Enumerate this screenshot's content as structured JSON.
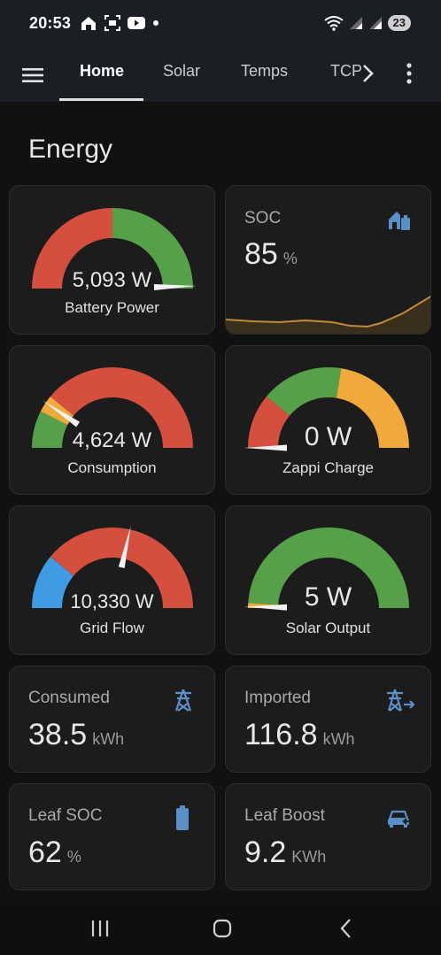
{
  "status_bar": {
    "time": "20:53",
    "battery": "23",
    "icons": [
      "home-icon",
      "screen-record-icon",
      "youtube-icon",
      "dot-icon",
      "wifi-icon",
      "signal-icon",
      "signal-icon"
    ]
  },
  "app_bar": {
    "menu_icon": "hamburger-menu-icon",
    "tabs": [
      {
        "label": "Home",
        "active": true
      },
      {
        "label": "Solar",
        "active": false
      },
      {
        "label": "Temps",
        "active": false
      },
      {
        "label": "TCP",
        "active": false
      }
    ],
    "scroll_icon": "chevron-right-icon",
    "more_icon": "more-vertical-icon"
  },
  "section": {
    "title": "Energy"
  },
  "gauges": {
    "battery_power": {
      "value": "5,093 W",
      "label": "Battery Power",
      "needle_fraction": 0.99,
      "segments": [
        {
          "from": 0,
          "to": 0.5,
          "color": "#d54f3f"
        },
        {
          "from": 0.5,
          "to": 1,
          "color": "#57a04a"
        }
      ]
    },
    "consumption": {
      "value": "4,624 W",
      "label": "Consumption",
      "needle_fraction": 0.19,
      "segments": [
        {
          "from": 0,
          "to": 0.15,
          "color": "#57a04a"
        },
        {
          "from": 0.15,
          "to": 0.22,
          "color": "#f0a93a"
        },
        {
          "from": 0.22,
          "to": 1,
          "color": "#d54f3f"
        }
      ]
    },
    "zappi_charge": {
      "value": "0 W",
      "label": "Zappi Charge",
      "needle_fraction": 0.0,
      "segments": [
        {
          "from": 0,
          "to": 0.22,
          "color": "#d54f3f"
        },
        {
          "from": 0.22,
          "to": 0.55,
          "color": "#57a04a"
        },
        {
          "from": 0.55,
          "to": 1,
          "color": "#f0a93a"
        }
      ]
    },
    "grid_flow": {
      "value": "10,330 W",
      "label": "Grid Flow",
      "needle_fraction": 0.57,
      "segments": [
        {
          "from": 0,
          "to": 0.22,
          "color": "#3f9be3"
        },
        {
          "from": 0.22,
          "to": 1,
          "color": "#d54f3f"
        }
      ]
    },
    "solar_output": {
      "value": "5 W",
      "label": "Solar Output",
      "needle_fraction": 0.005,
      "segments": [
        {
          "from": 0,
          "to": 0.02,
          "color": "#f0a93a"
        },
        {
          "from": 0.02,
          "to": 1,
          "color": "#57a04a"
        }
      ]
    }
  },
  "soc_card": {
    "name": "SOC",
    "value": "85",
    "unit": "%",
    "icon": "home-battery-icon",
    "accent": "#5b8fc7",
    "trend_color": "#c08a3a"
  },
  "sensors": {
    "consumed": {
      "name": "Consumed",
      "value": "38.5",
      "unit": "kWh",
      "icon": "transmission-tower-icon"
    },
    "imported": {
      "name": "Imported",
      "value": "116.8",
      "unit": "kWh",
      "icon": "transmission-tower-import-icon"
    },
    "leaf_soc": {
      "name": "Leaf SOC",
      "value": "62",
      "unit": "%",
      "icon": "battery-icon"
    },
    "leaf_boost": {
      "name": "Leaf Boost",
      "value": "9.2",
      "unit": "KWh",
      "icon": "car-electric-icon"
    }
  },
  "nav_bar": {
    "icons": [
      "recents-icon",
      "home-circle-icon",
      "back-icon"
    ]
  },
  "colors": {
    "background": "#111111",
    "card": "#1c1c1c",
    "icon_blue": "#5b8fc7",
    "red": "#d54f3f",
    "green": "#57a04a",
    "orange": "#f0a93a",
    "blue": "#3f9be3"
  }
}
